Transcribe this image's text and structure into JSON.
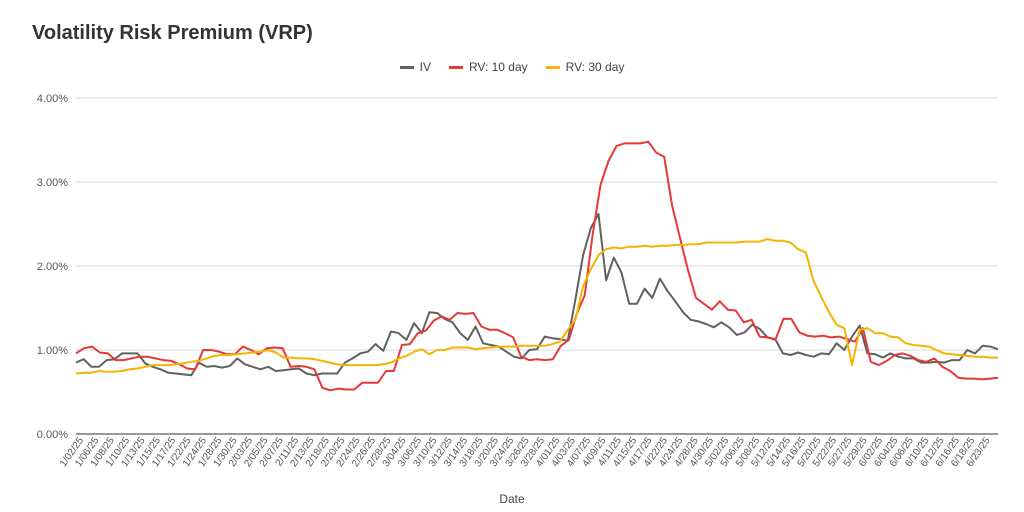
{
  "chart_data": {
    "type": "line",
    "title": "Volatility Risk Premium (VRP)",
    "xlabel": "Date",
    "ylabel": "",
    "ylim": [
      0,
      0.04
    ],
    "y_ticks": [
      "0.00%",
      "1.00%",
      "2.00%",
      "3.00%",
      "4.00%"
    ],
    "grid": true,
    "legend_position": "top-center",
    "x_tick_labels": [
      "1/02/25",
      "1/06/25",
      "1/08/25",
      "1/10/25",
      "1/13/25",
      "1/15/25",
      "1/17/25",
      "1/22/25",
      "1/24/25",
      "1/28/25",
      "1/30/25",
      "2/03/25",
      "2/05/25",
      "2/07/25",
      "2/11/25",
      "2/13/25",
      "2/18/25",
      "2/20/25",
      "2/24/25",
      "2/26/25",
      "2/28/25",
      "3/04/25",
      "3/06/25",
      "3/10/25",
      "3/12/25",
      "3/14/25",
      "3/18/25",
      "3/20/25",
      "3/24/25",
      "3/26/25",
      "3/28/25",
      "4/01/25",
      "4/03/25",
      "4/07/25",
      "4/09/25",
      "4/11/25",
      "4/15/25",
      "4/17/25",
      "4/22/25",
      "4/24/25",
      "4/28/25",
      "4/30/25",
      "5/02/25",
      "5/06/25",
      "5/08/25",
      "5/12/25",
      "5/14/25",
      "5/16/25",
      "5/20/25",
      "5/22/25",
      "5/27/25",
      "5/29/25",
      "6/02/25",
      "6/04/25",
      "6/06/25",
      "6/10/25",
      "6/12/25",
      "6/16/25",
      "6/18/25",
      "6/23/25"
    ],
    "series": [
      {
        "name": "IV",
        "color": "#616161",
        "values": [
          0.0085,
          0.0089,
          0.008,
          0.008,
          0.0088,
          0.0089,
          0.0096,
          0.0096,
          0.0096,
          0.0084,
          0.008,
          0.0077,
          0.0073,
          0.0072,
          0.0071,
          0.007,
          0.0085,
          0.008,
          0.0081,
          0.0079,
          0.0081,
          0.009,
          0.0083,
          0.008,
          0.0077,
          0.008,
          0.0075,
          0.0076,
          0.0077,
          0.0078,
          0.0072,
          0.007,
          0.0072,
          0.0072,
          0.0072,
          0.0085,
          0.009,
          0.0096,
          0.0098,
          0.0107,
          0.0099,
          0.0122,
          0.012,
          0.0112,
          0.0132,
          0.012,
          0.0145,
          0.0144,
          0.0137,
          0.0133,
          0.012,
          0.0112,
          0.0128,
          0.0108,
          0.0106,
          0.0104,
          0.0098,
          0.0092,
          0.009,
          0.01,
          0.0101,
          0.0116,
          0.0114,
          0.0113,
          0.0111,
          0.016,
          0.0213,
          0.0245,
          0.0262,
          0.0183,
          0.021,
          0.0192,
          0.0155,
          0.0155,
          0.0173,
          0.0162,
          0.0185,
          0.017,
          0.0158,
          0.0145,
          0.0136,
          0.0134,
          0.0131,
          0.0127,
          0.0133,
          0.0127,
          0.0118,
          0.0121,
          0.013,
          0.0125,
          0.0115,
          0.0113,
          0.0096,
          0.0094,
          0.0097,
          0.0094,
          0.0092,
          0.0096,
          0.0095,
          0.0108,
          0.01,
          0.0116,
          0.0129,
          0.0096,
          0.0095,
          0.0091,
          0.0096,
          0.0092,
          0.009,
          0.009,
          0.0085,
          0.0085,
          0.0086,
          0.0085,
          0.0088,
          0.0088,
          0.01,
          0.0096,
          0.0105,
          0.0104,
          0.0101
        ]
      },
      {
        "name": "RV: 10 day",
        "color": "#e53935",
        "values": [
          0.0096,
          0.0102,
          0.0104,
          0.0097,
          0.0096,
          0.0088,
          0.0088,
          0.009,
          0.0092,
          0.0092,
          0.009,
          0.0088,
          0.0087,
          0.0083,
          0.0078,
          0.0077,
          0.01,
          0.01,
          0.0098,
          0.0095,
          0.0095,
          0.0104,
          0.01,
          0.0095,
          0.0102,
          0.0103,
          0.0102,
          0.008,
          0.0081,
          0.008,
          0.0077,
          0.0055,
          0.0052,
          0.0054,
          0.0053,
          0.0053,
          0.0061,
          0.0061,
          0.0061,
          0.0075,
          0.0075,
          0.0106,
          0.0107,
          0.012,
          0.0123,
          0.0135,
          0.014,
          0.0136,
          0.0144,
          0.0143,
          0.0144,
          0.0128,
          0.0124,
          0.0124,
          0.012,
          0.0115,
          0.0092,
          0.0088,
          0.0089,
          0.0088,
          0.0089,
          0.0105,
          0.0112,
          0.0143,
          0.0165,
          0.0237,
          0.0297,
          0.0325,
          0.0343,
          0.0346,
          0.0346,
          0.0346,
          0.0348,
          0.0335,
          0.033,
          0.0272,
          0.0233,
          0.0195,
          0.0162,
          0.0155,
          0.0148,
          0.0158,
          0.0148,
          0.0147,
          0.0133,
          0.0136,
          0.0116,
          0.0115,
          0.0112,
          0.0137,
          0.0137,
          0.0121,
          0.0117,
          0.0116,
          0.0117,
          0.0115,
          0.0116,
          0.0113,
          0.011,
          0.0126,
          0.0086,
          0.0082,
          0.0087,
          0.0094,
          0.0096,
          0.0093,
          0.0088,
          0.0086,
          0.009,
          0.008,
          0.0075,
          0.0067,
          0.0066,
          0.0066,
          0.0065,
          0.0066,
          0.0067
        ]
      },
      {
        "name": "RV: 30 day",
        "color": "#f4b400",
        "values": [
          0.0072,
          0.0073,
          0.0073,
          0.0075,
          0.0074,
          0.0074,
          0.0075,
          0.0077,
          0.0078,
          0.008,
          0.0082,
          0.0082,
          0.0082,
          0.0083,
          0.0084,
          0.0086,
          0.0087,
          0.009,
          0.0093,
          0.0094,
          0.0094,
          0.0095,
          0.0096,
          0.0097,
          0.0098,
          0.01,
          0.0097,
          0.0091,
          0.0091,
          0.009,
          0.009,
          0.0089,
          0.0087,
          0.0085,
          0.0083,
          0.0082,
          0.0082,
          0.0082,
          0.0082,
          0.0082,
          0.0083,
          0.0085,
          0.009,
          0.0093,
          0.0098,
          0.0101,
          0.0095,
          0.01,
          0.01,
          0.0103,
          0.0103,
          0.0103,
          0.0101,
          0.0102,
          0.0103,
          0.0104,
          0.0104,
          0.0104,
          0.0105,
          0.0105,
          0.0105,
          0.0105,
          0.0107,
          0.011,
          0.0124,
          0.0136,
          0.0176,
          0.0196,
          0.0213,
          0.022,
          0.0222,
          0.0221,
          0.0223,
          0.0223,
          0.0224,
          0.0223,
          0.0224,
          0.0224,
          0.0225,
          0.0225,
          0.0226,
          0.0226,
          0.0228,
          0.0228,
          0.0228,
          0.0228,
          0.0228,
          0.0229,
          0.0229,
          0.0229,
          0.0232,
          0.023,
          0.023,
          0.0228,
          0.022,
          0.0216,
          0.0182,
          0.0163,
          0.0145,
          0.013,
          0.0126,
          0.0082,
          0.0124,
          0.0126,
          0.012,
          0.012,
          0.0116,
          0.0115,
          0.0108,
          0.0106,
          0.0105,
          0.0104,
          0.01,
          0.0096,
          0.0095,
          0.0094,
          0.0093,
          0.0092,
          0.0092,
          0.0091,
          0.0091
        ]
      }
    ]
  }
}
